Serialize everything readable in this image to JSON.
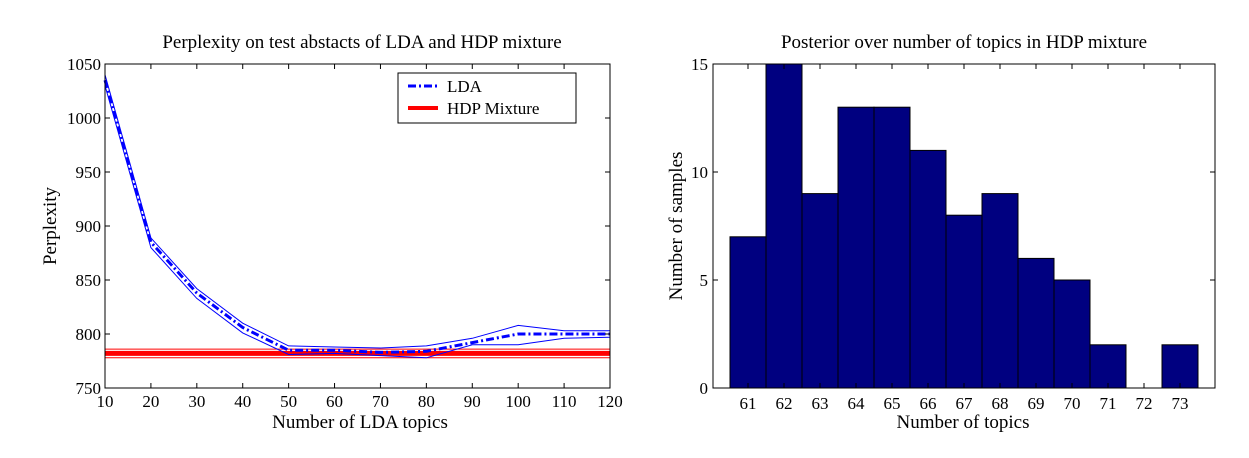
{
  "chart_data": [
    {
      "type": "line",
      "title": "Perplexity on test abstacts of LDA and HDP mixture",
      "xlabel": "Number of LDA topics",
      "ylabel": "Perplexity",
      "xlim": [
        10,
        120
      ],
      "ylim": [
        750,
        1050
      ],
      "xticks": [
        "10",
        "20",
        "30",
        "40",
        "50",
        "60",
        "70",
        "80",
        "90",
        "100",
        "110",
        "120"
      ],
      "yticks": [
        "750",
        "800",
        "850",
        "900",
        "950",
        "1000",
        "1050"
      ],
      "legend_position": "top-right",
      "grid": false,
      "series": [
        {
          "name": "LDA",
          "color": "#0000ff",
          "style": "dash-dot",
          "x": [
            10,
            20,
            30,
            40,
            50,
            60,
            70,
            80,
            90,
            100,
            110,
            120
          ],
          "values": [
            1035,
            885,
            838,
            806,
            785,
            785,
            783,
            784,
            792,
            800,
            800,
            800
          ],
          "upper": [
            1040,
            889,
            842,
            810,
            789,
            788,
            787,
            789,
            796,
            808,
            803,
            803
          ],
          "lower": [
            1030,
            880,
            833,
            801,
            781,
            782,
            780,
            778,
            790,
            790,
            796,
            797
          ]
        },
        {
          "name": "HDP Mixture",
          "color": "#ff0000",
          "style": "solid",
          "x": [
            10,
            120
          ],
          "values": [
            782,
            782
          ],
          "upper": [
            786,
            786
          ],
          "lower": [
            778,
            778
          ]
        }
      ]
    },
    {
      "type": "bar",
      "title": "Posterior over number of topics in HDP mixture",
      "xlabel": "Number of topics",
      "ylabel": "Number of samples",
      "categories": [
        "61",
        "62",
        "63",
        "64",
        "65",
        "66",
        "67",
        "68",
        "69",
        "70",
        "71",
        "72",
        "73"
      ],
      "values": [
        7,
        15,
        9,
        13,
        13,
        11,
        8,
        9,
        6,
        5,
        2,
        0,
        2
      ],
      "ylim": [
        0,
        15
      ],
      "yticks": [
        "0",
        "5",
        "10",
        "15"
      ],
      "bar_color": "#000080",
      "grid": false
    }
  ]
}
